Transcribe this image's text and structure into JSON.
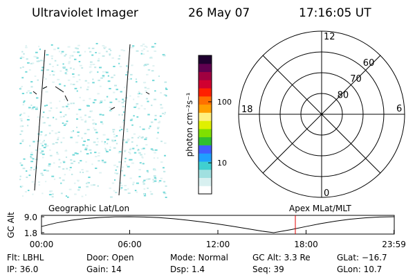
{
  "header": {
    "title": "Ultraviolet Imager",
    "date": "26 May 07",
    "time": "17:16:05 UT"
  },
  "colorbar": {
    "label": "photon cm⁻²s⁻¹",
    "log": true,
    "lim": [
      3.1,
      575
    ],
    "ticks": [
      10,
      100
    ],
    "colors": [
      "#ffffff",
      "#d8f0f0",
      "#a0e0e0",
      "#40d0d0",
      "#20a0ff",
      "#4060ff",
      "#30c030",
      "#80e000",
      "#e0f000",
      "#fff080",
      "#ffa000",
      "#ff7000",
      "#ff2000",
      "#d00030",
      "#a00040",
      "#600050",
      "#200030"
    ]
  },
  "polar_plot": {
    "mlt_labels": {
      "top": "12",
      "left": "18",
      "right": "6",
      "bottom": "0"
    },
    "lat_lim": [
      90,
      50
    ],
    "rings": [
      80,
      70,
      60
    ]
  },
  "altitude_plot": {
    "type": "line",
    "ylabel": "GC Alt",
    "left_label": "Geographic Lat/Lon",
    "right_label": "Apex MLat/MLT",
    "x": [
      0,
      1,
      2,
      3,
      4,
      5,
      6,
      7,
      8,
      9,
      10,
      11,
      12,
      13,
      14,
      15,
      15.8,
      17,
      18,
      19,
      20,
      21,
      22,
      23,
      24
    ],
    "values": [
      4.6,
      6.2,
      7.4,
      8.2,
      8.7,
      8.95,
      9.0,
      8.9,
      8.6,
      8.1,
      7.4,
      6.6,
      5.7,
      4.7,
      3.6,
      2.5,
      1.8,
      3.2,
      4.6,
      5.9,
      7.0,
      7.9,
      8.5,
      8.9,
      9.0
    ],
    "color": "#000000",
    "time_marker": 17.27,
    "marker_color": "#e00000",
    "xlim": [
      0,
      24
    ],
    "ylim": [
      1.8,
      9.0
    ],
    "yticks": [
      {
        "value": 9.0,
        "label": "9.0"
      },
      {
        "value": 1.8,
        "label": "1.8"
      }
    ],
    "xticks": [
      {
        "value": 0,
        "label": "00:00"
      },
      {
        "value": 6,
        "label": "06:00"
      },
      {
        "value": 12,
        "label": "12:00"
      },
      {
        "value": 18,
        "label": "18:00"
      },
      {
        "value": 23.98,
        "label": "23:59"
      }
    ]
  },
  "info": [
    [
      "Flt: LBHL",
      "Door: Open",
      "Mode: Normal",
      "GC Alt: 3.3 Re",
      "GLat: −16.7"
    ],
    [
      "IP: 36.0",
      "Gain: 14",
      "Dsp:    1.4",
      "Seq: 39",
      "GLon: 10.7"
    ]
  ]
}
